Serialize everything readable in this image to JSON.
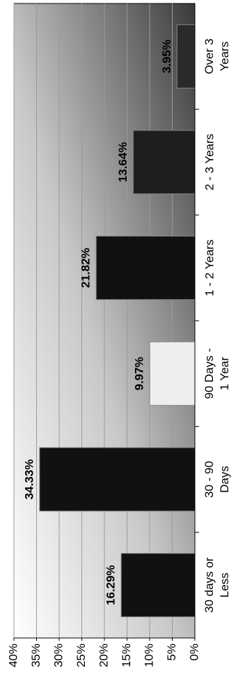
{
  "chart_data": {
    "type": "bar",
    "categories": [
      "30 days or Less",
      "30 - 90 Days",
      "90 Days - 1 Year",
      "1 - 2 Years",
      "2 - 3 Years",
      "Over 3 Years"
    ],
    "values": [
      16.29,
      34.33,
      9.97,
      21.82,
      13.64,
      3.95
    ],
    "value_labels": [
      "16.29%",
      "34.33%",
      "9.97%",
      "21.82%",
      "13.64%",
      "3.95%"
    ],
    "colors": [
      "#111111",
      "#111111",
      "#eeeeee",
      "#111111",
      "#1e1e1e",
      "#2a2a2a"
    ],
    "ylim": [
      0,
      40
    ],
    "yticks": [
      {
        "value": 0,
        "label": "0%"
      },
      {
        "value": 5,
        "label": "5%"
      },
      {
        "value": 10,
        "label": "10%"
      },
      {
        "value": 15,
        "label": "15%"
      },
      {
        "value": 20,
        "label": "20%"
      },
      {
        "value": 25,
        "label": "25%"
      },
      {
        "value": 30,
        "label": "30%"
      },
      {
        "value": 35,
        "label": "35%"
      },
      {
        "value": 40,
        "label": "40%"
      }
    ],
    "grid": true
  }
}
